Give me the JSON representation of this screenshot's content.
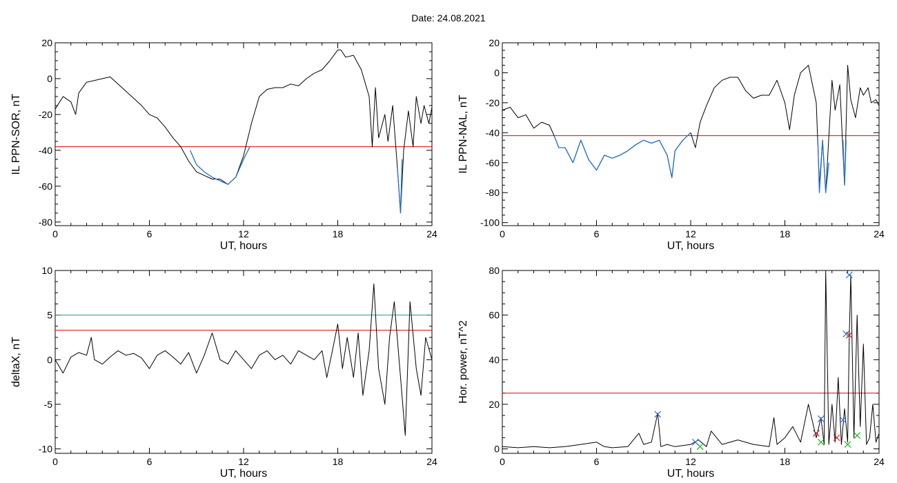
{
  "figure": {
    "title": "Date:  24.08.2021"
  },
  "colors": {
    "trace": "#000000",
    "highlight": "#1f6fd0",
    "threshold_red": "#e00000",
    "threshold_teal": "#2f9090",
    "marker_blue": "#2f6fd0",
    "marker_red": "#d02020",
    "marker_green": "#20b020"
  },
  "chart_data": [
    {
      "id": "sor",
      "type": "line",
      "title": "",
      "xlabel": "UT, hours",
      "ylabel": "IL PPN-SOR, nT",
      "xlim": [
        0,
        24
      ],
      "ylim": [
        -82,
        20
      ],
      "xticks": [
        0,
        6,
        12,
        18,
        24
      ],
      "yticks": [
        20,
        0,
        -20,
        -40,
        -60,
        -80
      ],
      "grid": false,
      "series": [
        {
          "role": "trace",
          "x": [
            0,
            0.5,
            1,
            1.3,
            1.5,
            2,
            2.5,
            3,
            3.5,
            4,
            4.5,
            5,
            5.5,
            6,
            6.5,
            7,
            7.5,
            8,
            8.5,
            9,
            9.5,
            10,
            10.5,
            11,
            11.5,
            12,
            12.5,
            13,
            13.5,
            14,
            14.5,
            15,
            15.5,
            16,
            16.5,
            17,
            17.5,
            18,
            18.2,
            18.5,
            19,
            19.5,
            20,
            20.2,
            20.4,
            20.6,
            21,
            21.2,
            21.5,
            21.8,
            22,
            22.2,
            22.5,
            22.8,
            23,
            23.3,
            23.5,
            23.8,
            24
          ],
          "y": [
            -17,
            -10,
            -13,
            -20,
            -8,
            -2,
            -1,
            0,
            1,
            -3,
            -7,
            -11,
            -15,
            -20,
            -22,
            -27,
            -33,
            -38,
            -46,
            -52,
            -54,
            -56,
            -56,
            -59,
            -55,
            -43,
            -25,
            -10,
            -6,
            -5,
            -5,
            -3,
            -4,
            0,
            3,
            5,
            10,
            16,
            16,
            12,
            13,
            5,
            -10,
            -38,
            -5,
            -33,
            -20,
            -35,
            -15,
            -50,
            -75,
            -40,
            -18,
            -38,
            -10,
            -25,
            -15,
            -25,
            -16
          ]
        },
        {
          "role": "highlight",
          "x": [
            8.6,
            9,
            9.5,
            10,
            10.5,
            11,
            11.5,
            12,
            12.4
          ],
          "y": [
            -40,
            -48,
            -52,
            -55,
            -57,
            -59,
            -55,
            -45,
            -38
          ]
        },
        {
          "role": "highlight",
          "x": [
            21.8,
            22,
            22.1
          ],
          "y": [
            -50,
            -75,
            -45
          ]
        }
      ],
      "thresholds": [
        {
          "y": -38,
          "color": "red"
        }
      ]
    },
    {
      "id": "nal",
      "type": "line",
      "title": "",
      "xlabel": "UT, hours",
      "ylabel": "IL PPN-NAL, nT",
      "xlim": [
        0,
        24
      ],
      "ylim": [
        -102,
        20
      ],
      "xticks": [
        0,
        6,
        12,
        18,
        24
      ],
      "yticks": [
        20,
        0,
        -20,
        -40,
        -60,
        -80,
        -100
      ],
      "grid": false,
      "series": [
        {
          "role": "trace",
          "x": [
            0,
            0.5,
            1,
            1.5,
            2,
            2.5,
            3,
            3.3,
            3.6,
            4,
            4.5,
            5,
            5.5,
            6,
            6.5,
            7,
            7.5,
            8,
            8.5,
            9,
            9.5,
            10,
            10.5,
            10.8,
            11,
            11.5,
            12,
            12.3,
            12.6,
            13,
            13.5,
            14,
            14.5,
            15,
            15.5,
            16,
            16.5,
            17,
            17.5,
            18,
            18.3,
            18.6,
            19,
            19.5,
            20,
            20.2,
            20.4,
            20.6,
            21,
            21.2,
            21.5,
            21.8,
            22,
            22.2,
            22.5,
            22.8,
            23,
            23.3,
            23.5,
            23.8,
            24
          ],
          "y": [
            -25,
            -23,
            -30,
            -28,
            -37,
            -33,
            -35,
            -42,
            -50,
            -50,
            -60,
            -45,
            -58,
            -65,
            -55,
            -57,
            -55,
            -52,
            -48,
            -45,
            -47,
            -45,
            -55,
            -70,
            -52,
            -45,
            -40,
            -50,
            -33,
            -22,
            -10,
            -5,
            -3,
            -3,
            -12,
            -17,
            -15,
            -15,
            -5,
            -20,
            -38,
            -15,
            0,
            5,
            -20,
            -75,
            -45,
            -80,
            -5,
            -25,
            -8,
            -75,
            5,
            -18,
            -30,
            -10,
            -15,
            -10,
            -20,
            -18,
            -22
          ]
        },
        {
          "role": "highlight",
          "x": [
            3.3,
            3.6,
            4,
            4.5,
            5,
            5.5,
            6,
            6.5,
            7,
            7.5,
            8,
            8.5,
            9,
            9.5,
            10,
            10.5,
            10.8,
            11,
            11.5,
            12
          ],
          "y": [
            -42,
            -50,
            -50,
            -60,
            -45,
            -58,
            -65,
            -55,
            -57,
            -55,
            -52,
            -48,
            -45,
            -47,
            -45,
            -55,
            -70,
            -52,
            -45,
            -40
          ]
        },
        {
          "role": "highlight",
          "x": [
            20.1,
            20.2,
            20.4,
            20.6,
            20.8
          ],
          "y": [
            -45,
            -80,
            -45,
            -80,
            -60
          ]
        },
        {
          "role": "highlight",
          "x": [
            21.7,
            21.8,
            21.9
          ],
          "y": [
            -45,
            -75,
            -45
          ]
        }
      ],
      "thresholds": [
        {
          "y": -42,
          "color": "red"
        }
      ]
    },
    {
      "id": "deltax",
      "type": "line",
      "title": "",
      "xlabel": "UT, hours",
      "ylabel": "deltaX, nT",
      "xlim": [
        0,
        24
      ],
      "ylim": [
        -10.5,
        10
      ],
      "xticks": [
        0,
        6,
        12,
        18,
        24
      ],
      "yticks": [
        10,
        5,
        0,
        -5,
        -10
      ],
      "grid": false,
      "series": [
        {
          "role": "trace",
          "x": [
            0,
            0.5,
            1,
            1.5,
            2,
            2.3,
            2.5,
            3,
            3.5,
            4,
            4.5,
            5,
            5.5,
            6,
            6.5,
            7,
            7.5,
            8,
            8.5,
            9,
            9.5,
            10,
            10.5,
            11,
            11.5,
            12,
            12.5,
            13,
            13.5,
            14,
            14.5,
            15,
            15.5,
            16,
            16.5,
            17,
            17.3,
            17.6,
            18,
            18.3,
            18.6,
            19,
            19.3,
            19.6,
            20,
            20.3,
            20.6,
            21,
            21.3,
            21.6,
            22,
            22.3,
            22.6,
            23,
            23.3,
            23.6,
            24
          ],
          "y": [
            0,
            -1.5,
            0.3,
            0.8,
            0.5,
            2.5,
            0,
            -0.5,
            0.3,
            1,
            0.5,
            0.7,
            0.2,
            -1,
            0.5,
            1,
            0.3,
            -0.5,
            0.8,
            -1.5,
            0.5,
            3,
            0,
            -0.5,
            1,
            0,
            -1,
            0.5,
            1,
            0,
            0.5,
            -0.5,
            1,
            0.5,
            0,
            1,
            -2,
            0.5,
            4,
            -1,
            2.5,
            -2,
            3,
            -4,
            1,
            8.5,
            -1,
            -5,
            2.5,
            6.5,
            -2,
            -8.5,
            6.5,
            -1,
            -4,
            2.5,
            0
          ]
        }
      ],
      "thresholds": [
        {
          "y": 5,
          "color": "teal"
        },
        {
          "y": 3.3,
          "color": "red"
        }
      ]
    },
    {
      "id": "hpower",
      "type": "line",
      "title": "",
      "xlabel": "UT, hours",
      "ylabel": "Hor. power, nT^2",
      "xlim": [
        0,
        24
      ],
      "ylim": [
        -2,
        80
      ],
      "xticks": [
        0,
        6,
        12,
        18,
        24
      ],
      "yticks": [
        80,
        60,
        40,
        20,
        0
      ],
      "grid": false,
      "series": [
        {
          "role": "trace",
          "x": [
            0,
            1,
            2,
            3,
            4,
            5,
            6,
            6.5,
            7,
            8,
            8.7,
            9,
            9.5,
            9.9,
            10.1,
            10.5,
            11,
            12,
            12.5,
            13,
            13.3,
            14,
            15,
            16,
            17,
            17.3,
            17.5,
            18,
            18.5,
            19,
            19.5,
            20,
            20.3,
            20.5,
            20.6,
            20.8,
            21,
            21.2,
            21.4,
            21.6,
            21.8,
            22,
            22.1,
            22.2,
            22.4,
            22.6,
            22.8,
            23,
            23.2,
            23.4,
            23.6,
            23.8,
            24
          ],
          "y": [
            1,
            0.5,
            1,
            0.5,
            1,
            2,
            3,
            1,
            0.5,
            1,
            7,
            2,
            3,
            16,
            1,
            2,
            1,
            2,
            4,
            1,
            8,
            2,
            4,
            2,
            1,
            14,
            2,
            5,
            10,
            3,
            20,
            5,
            14,
            2,
            80,
            2,
            20,
            3,
            32,
            2,
            18,
            3,
            50,
            78,
            5,
            60,
            10,
            47,
            2,
            5,
            20,
            3,
            7
          ]
        }
      ],
      "thresholds": [
        {
          "y": 25,
          "color": "red"
        }
      ],
      "markers": [
        {
          "x": 9.9,
          "y": 15.5,
          "color": "blue"
        },
        {
          "x": 12.3,
          "y": 3,
          "color": "blue"
        },
        {
          "x": 20.3,
          "y": 13.5,
          "color": "blue"
        },
        {
          "x": 21.7,
          "y": 13,
          "color": "blue"
        },
        {
          "x": 21.9,
          "y": 51.5,
          "color": "blue"
        },
        {
          "x": 22.1,
          "y": 78,
          "color": "blue"
        },
        {
          "x": 20.0,
          "y": 7,
          "color": "red"
        },
        {
          "x": 21.3,
          "y": 5,
          "color": "red"
        },
        {
          "x": 22.1,
          "y": 51,
          "color": "red"
        },
        {
          "x": 12.6,
          "y": 1,
          "color": "green"
        },
        {
          "x": 20.3,
          "y": 3,
          "color": "green"
        },
        {
          "x": 22.0,
          "y": 2,
          "color": "green"
        },
        {
          "x": 22.6,
          "y": 6,
          "color": "green"
        }
      ]
    }
  ]
}
